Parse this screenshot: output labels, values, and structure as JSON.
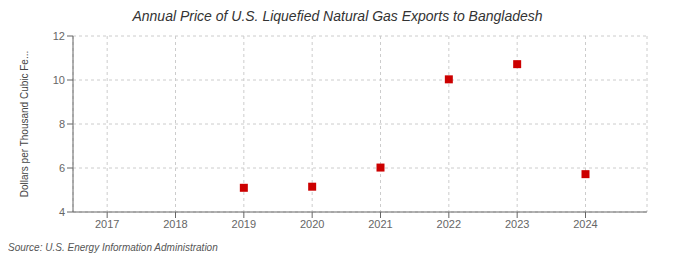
{
  "chart_data": {
    "type": "scatter",
    "title": "Annual Price of U.S. Liquefied Natural Gas Exports to Bangladesh",
    "ylabel": "Dollars per Thousand Cubic Fe...",
    "annotations": [
      "Source: U.S. Energy Information Administration"
    ],
    "x": [
      2019,
      2020,
      2021,
      2022,
      2023,
      2024
    ],
    "values": [
      5.1,
      5.15,
      6.02,
      10.03,
      10.72,
      5.72
    ],
    "color": "#cc0000",
    "marker": "square",
    "xlim": [
      2016.5,
      2024.9
    ],
    "xticks": [
      2017,
      2018,
      2019,
      2020,
      2021,
      2022,
      2023,
      2024
    ],
    "ylim": [
      4,
      12
    ],
    "yticks": [
      4,
      6,
      8,
      10,
      12
    ],
    "grid": true
  }
}
